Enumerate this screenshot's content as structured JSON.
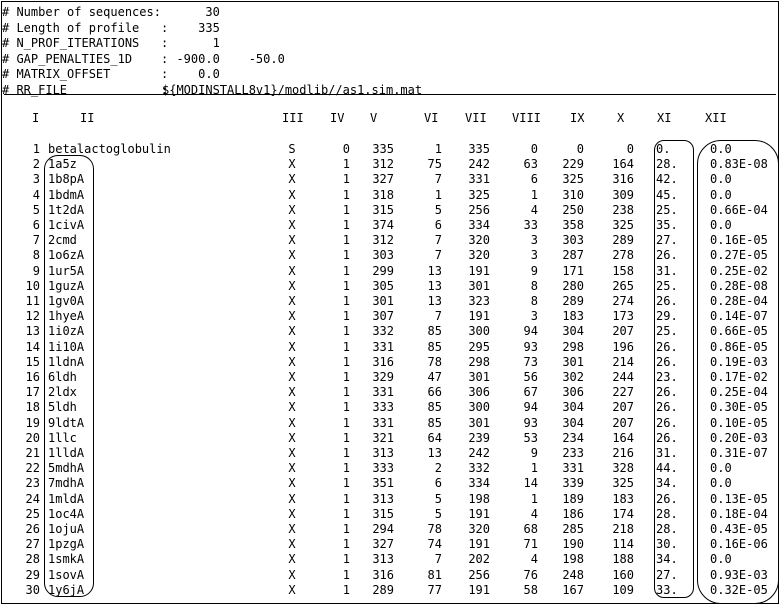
{
  "header_lines": [
    {
      "key": "# Number of sequences:",
      "value": "      30"
    },
    {
      "key": "# Length of profile   :",
      "value": "     335"
    },
    {
      "key": "# N_PROF_ITERATIONS   :",
      "value": "       1"
    },
    {
      "key": "# GAP_PENALTIES_1D    :",
      "value": "  -900.0    -50.0"
    },
    {
      "key": "# MATRIX_OFFSET       :",
      "value": "     0.0"
    },
    {
      "key": "# RR_FILE             :",
      "value": "${MODINSTALL8v1}/modlib//as1.sim.mat"
    }
  ],
  "columns": [
    "I",
    "II",
    "III",
    "IV",
    "V",
    "VI",
    "VII",
    "VIII",
    "IX",
    "X",
    "XI",
    "XII"
  ],
  "rows": [
    [
      "1",
      "betalactoglobulin",
      "S",
      "0",
      "335",
      "1",
      "335",
      "0",
      "0",
      "0",
      "0.",
      "0.0"
    ],
    [
      "2",
      "1a5z",
      "X",
      "1",
      "312",
      "75",
      "242",
      "63",
      "229",
      "164",
      "28.",
      "0.83E-08"
    ],
    [
      "3",
      "1b8pA",
      "X",
      "1",
      "327",
      "7",
      "331",
      "6",
      "325",
      "316",
      "42.",
      "0.0"
    ],
    [
      "4",
      "1bdmA",
      "X",
      "1",
      "318",
      "1",
      "325",
      "1",
      "310",
      "309",
      "45.",
      "0.0"
    ],
    [
      "5",
      "1t2dA",
      "X",
      "1",
      "315",
      "5",
      "256",
      "4",
      "250",
      "238",
      "25.",
      "0.66E-04"
    ],
    [
      "6",
      "1civA",
      "X",
      "1",
      "374",
      "6",
      "334",
      "33",
      "358",
      "325",
      "35.",
      "0.0"
    ],
    [
      "7",
      "2cmd",
      "X",
      "1",
      "312",
      "7",
      "320",
      "3",
      "303",
      "289",
      "27.",
      "0.16E-05"
    ],
    [
      "8",
      "1o6zA",
      "X",
      "1",
      "303",
      "7",
      "320",
      "3",
      "287",
      "278",
      "26.",
      "0.27E-05"
    ],
    [
      "9",
      "1ur5A",
      "X",
      "1",
      "299",
      "13",
      "191",
      "9",
      "171",
      "158",
      "31.",
      "0.25E-02"
    ],
    [
      "10",
      "1guzA",
      "X",
      "1",
      "305",
      "13",
      "301",
      "8",
      "280",
      "265",
      "25.",
      "0.28E-08"
    ],
    [
      "11",
      "1gv0A",
      "X",
      "1",
      "301",
      "13",
      "323",
      "8",
      "289",
      "274",
      "26.",
      "0.28E-04"
    ],
    [
      "12",
      "1hyeA",
      "X",
      "1",
      "307",
      "7",
      "191",
      "3",
      "183",
      "173",
      "29.",
      "0.14E-07"
    ],
    [
      "13",
      "1i0zA",
      "X",
      "1",
      "332",
      "85",
      "300",
      "94",
      "304",
      "207",
      "25.",
      "0.66E-05"
    ],
    [
      "14",
      "1i10A",
      "X",
      "1",
      "331",
      "85",
      "295",
      "93",
      "298",
      "196",
      "26.",
      "0.86E-05"
    ],
    [
      "15",
      "1ldnA",
      "X",
      "1",
      "316",
      "78",
      "298",
      "73",
      "301",
      "214",
      "26.",
      "0.19E-03"
    ],
    [
      "16",
      "6ldh",
      "X",
      "1",
      "329",
      "47",
      "301",
      "56",
      "302",
      "244",
      "23.",
      "0.17E-02"
    ],
    [
      "17",
      "2ldx",
      "X",
      "1",
      "331",
      "66",
      "306",
      "67",
      "306",
      "227",
      "26.",
      "0.25E-04"
    ],
    [
      "18",
      "5ldh",
      "X",
      "1",
      "333",
      "85",
      "300",
      "94",
      "304",
      "207",
      "26.",
      "0.30E-05"
    ],
    [
      "19",
      "9ldtA",
      "X",
      "1",
      "331",
      "85",
      "301",
      "93",
      "304",
      "207",
      "26.",
      "0.10E-05"
    ],
    [
      "20",
      "1llc",
      "X",
      "1",
      "321",
      "64",
      "239",
      "53",
      "234",
      "164",
      "26.",
      "0.20E-03"
    ],
    [
      "21",
      "1lldA",
      "X",
      "1",
      "313",
      "13",
      "242",
      "9",
      "233",
      "216",
      "31.",
      "0.31E-07"
    ],
    [
      "22",
      "5mdhA",
      "X",
      "1",
      "333",
      "2",
      "332",
      "1",
      "331",
      "328",
      "44.",
      "0.0"
    ],
    [
      "23",
      "7mdhA",
      "X",
      "1",
      "351",
      "6",
      "334",
      "14",
      "339",
      "325",
      "34.",
      "0.0"
    ],
    [
      "24",
      "1mldA",
      "X",
      "1",
      "313",
      "5",
      "198",
      "1",
      "189",
      "183",
      "26.",
      "0.13E-05"
    ],
    [
      "25",
      "1oc4A",
      "X",
      "1",
      "315",
      "5",
      "191",
      "4",
      "186",
      "174",
      "28.",
      "0.18E-04"
    ],
    [
      "26",
      "1ojuA",
      "X",
      "1",
      "294",
      "78",
      "320",
      "68",
      "285",
      "218",
      "28.",
      "0.43E-05"
    ],
    [
      "27",
      "1pzgA",
      "X",
      "1",
      "327",
      "74",
      "191",
      "71",
      "190",
      "114",
      "30.",
      "0.16E-06"
    ],
    [
      "28",
      "1smkA",
      "X",
      "1",
      "313",
      "7",
      "202",
      "4",
      "198",
      "188",
      "34.",
      "0.0"
    ],
    [
      "29",
      "1sovA",
      "X",
      "1",
      "316",
      "81",
      "256",
      "76",
      "248",
      "160",
      "27.",
      "0.93E-03"
    ],
    [
      "30",
      "1y6jA",
      "X",
      "1",
      "289",
      "77",
      "191",
      "58",
      "167",
      "109",
      "33.",
      "0.32E-05"
    ]
  ]
}
